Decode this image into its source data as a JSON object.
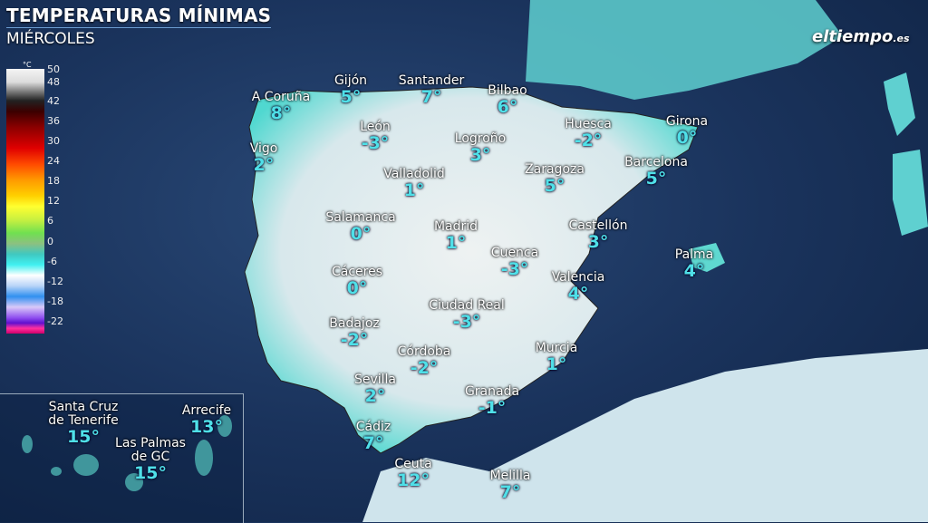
{
  "header": {
    "title": "TEMPERATURAS MÍNIMAS",
    "subtitle": "MIÉRCOLES"
  },
  "logo": {
    "text": "eltiempo",
    "suffix": ".es"
  },
  "legend": {
    "unit": "°C",
    "ticks": [
      "50",
      "48",
      "42",
      "36",
      "30",
      "24",
      "18",
      "12",
      "6",
      "0",
      "-6",
      "-12",
      "-18",
      "-22"
    ]
  },
  "colors": {
    "sea": "#1a335c",
    "land": "#e8eef0",
    "cold": "#9cc0f0",
    "mild": "#40d8d0",
    "temp_text": "#4fe0e8"
  },
  "cities": [
    {
      "name": "A Coruña",
      "temp": "8°"
    },
    {
      "name": "Gijón",
      "temp": "5°"
    },
    {
      "name": "Santander",
      "temp": "7°"
    },
    {
      "name": "Bilbao",
      "temp": "6°"
    },
    {
      "name": "León",
      "temp": "-3°"
    },
    {
      "name": "Logroño",
      "temp": "3°"
    },
    {
      "name": "Huesca",
      "temp": "-2°"
    },
    {
      "name": "Girona",
      "temp": "0°"
    },
    {
      "name": "Vigo",
      "temp": "2°"
    },
    {
      "name": "Valladolid",
      "temp": "1°"
    },
    {
      "name": "Zaragoza",
      "temp": "5°"
    },
    {
      "name": "Barcelona",
      "temp": "5°"
    },
    {
      "name": "Salamanca",
      "temp": "0°"
    },
    {
      "name": "Madrid",
      "temp": "1°"
    },
    {
      "name": "Castellón",
      "temp": "3°"
    },
    {
      "name": "Cuenca",
      "temp": "-3°"
    },
    {
      "name": "Palma",
      "temp": "4°"
    },
    {
      "name": "Cáceres",
      "temp": "0°"
    },
    {
      "name": "Valencia",
      "temp": "4°"
    },
    {
      "name": "Ciudad Real",
      "temp": "-3°"
    },
    {
      "name": "Badajoz",
      "temp": "-2°"
    },
    {
      "name": "Córdoba",
      "temp": "-2°"
    },
    {
      "name": "Murcia",
      "temp": "1°"
    },
    {
      "name": "Sevilla",
      "temp": "2°"
    },
    {
      "name": "Granada",
      "temp": "-1°"
    },
    {
      "name": "Cádiz",
      "temp": "7°"
    },
    {
      "name": "Ceuta",
      "temp": "12°"
    },
    {
      "name": "Melilla",
      "temp": "7°"
    },
    {
      "name": "Santa Cruz\nde Tenerife",
      "temp": "15°"
    },
    {
      "name": "Arrecife",
      "temp": "13°"
    },
    {
      "name": "Las Palmas\nde GC",
      "temp": "15°"
    }
  ]
}
